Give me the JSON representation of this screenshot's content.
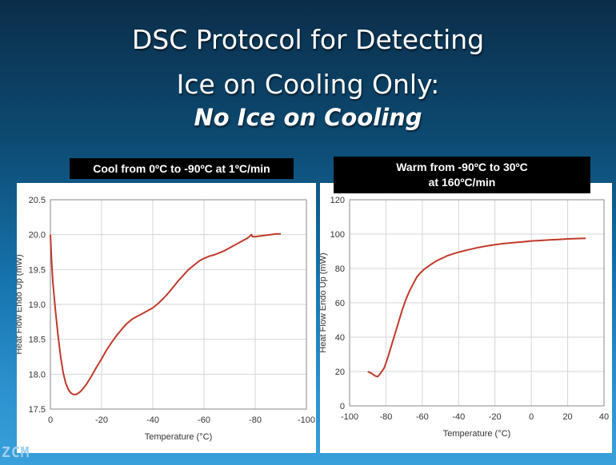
{
  "slide": {
    "title_line1": "DSC Protocol for Detecting",
    "title_line2": "Ice on Cooling Only:",
    "subtitle": "No Ice on Cooling",
    "left_label": "Cool from 0ºC to -90ºC at 1ºC/min",
    "right_label_line1": "Warm from -90ºC to 30ºC",
    "right_label_line2": "at 160ºC/min",
    "logo_text": "ZCM"
  },
  "chart_data": [
    {
      "type": "line",
      "xlabel": "Temperature (°C)",
      "ylabel": "Heat Flow Endo Up (mW)",
      "xlim": [
        0,
        -100
      ],
      "ylim": [
        17.5,
        20.5
      ],
      "xticks": [
        "0",
        "-20",
        "-40",
        "-60",
        "-80",
        "-100"
      ],
      "yticks": [
        "17.5",
        "18.0",
        "18.5",
        "19.0",
        "19.5",
        "20.0",
        "20.5"
      ],
      "xtick_values": [
        0,
        -20,
        -40,
        -60,
        -80,
        -100
      ],
      "ytick_values": [
        17.5,
        18.0,
        18.5,
        19.0,
        19.5,
        20.0,
        20.5
      ],
      "grid": true,
      "series": [
        {
          "color": "#c0392b",
          "x": [
            0,
            -0.5,
            -1,
            -2,
            -3,
            -4,
            -5,
            -6,
            -7,
            -8,
            -9,
            -10,
            -11,
            -12,
            -14,
            -16,
            -18,
            -20,
            -22,
            -24,
            -26,
            -28,
            -30,
            -32,
            -34,
            -36,
            -38,
            -40,
            -42,
            -44,
            -46,
            -48,
            -50,
            -52,
            -54,
            -56,
            -58,
            -60,
            -62,
            -64,
            -66,
            -68,
            -70,
            -72,
            -74,
            -76,
            -77,
            -78,
            -78.5,
            -79,
            -80,
            -82,
            -84,
            -86,
            -88,
            -90
          ],
          "y": [
            20.0,
            19.6,
            19.3,
            18.9,
            18.55,
            18.25,
            18.02,
            17.87,
            17.78,
            17.73,
            17.71,
            17.71,
            17.73,
            17.76,
            17.85,
            17.97,
            18.1,
            18.22,
            18.35,
            18.46,
            18.56,
            18.65,
            18.73,
            18.79,
            18.83,
            18.87,
            18.91,
            18.95,
            19.01,
            19.08,
            19.16,
            19.25,
            19.34,
            19.42,
            19.5,
            19.56,
            19.62,
            19.66,
            19.69,
            19.71,
            19.74,
            19.77,
            19.81,
            19.85,
            19.89,
            19.93,
            19.95,
            19.98,
            20.0,
            19.97,
            19.97,
            19.98,
            19.99,
            20.0,
            20.01,
            20.01
          ]
        }
      ]
    },
    {
      "type": "line",
      "xlabel": "Temperature (°C)",
      "ylabel": "Heat Flow Endo Up (mW)",
      "xlim": [
        -100,
        40
      ],
      "ylim": [
        0,
        120
      ],
      "xticks": [
        "-100",
        "-80",
        "-60",
        "-40",
        "-20",
        "0",
        "20",
        "40"
      ],
      "yticks": [
        "0",
        "20",
        "40",
        "60",
        "80",
        "100",
        "120"
      ],
      "xtick_values": [
        -100,
        -80,
        -60,
        -40,
        -20,
        0,
        20,
        40
      ],
      "ytick_values": [
        0,
        20,
        40,
        60,
        80,
        100,
        120
      ],
      "grid": true,
      "series": [
        {
          "color": "#c0392b",
          "x": [
            -90,
            -88,
            -86,
            -84.5,
            -83,
            -81,
            -79,
            -77,
            -75,
            -73,
            -71,
            -69,
            -67,
            -65,
            -63,
            -61,
            -59,
            -57,
            -55,
            -52,
            -49,
            -46,
            -43,
            -40,
            -35,
            -30,
            -25,
            -20,
            -15,
            -10,
            -5,
            0,
            5,
            10,
            15,
            20,
            25,
            30
          ],
          "y": [
            20,
            19,
            17.5,
            17,
            19,
            22,
            28,
            35,
            42,
            49,
            56,
            62,
            67,
            71,
            75,
            77.5,
            79.5,
            81,
            82.5,
            84.5,
            86,
            87.5,
            88.5,
            89.5,
            90.8,
            92,
            93,
            93.8,
            94.5,
            95,
            95.5,
            96,
            96.3,
            96.6,
            96.9,
            97.2,
            97.4,
            97.6
          ]
        }
      ]
    }
  ]
}
